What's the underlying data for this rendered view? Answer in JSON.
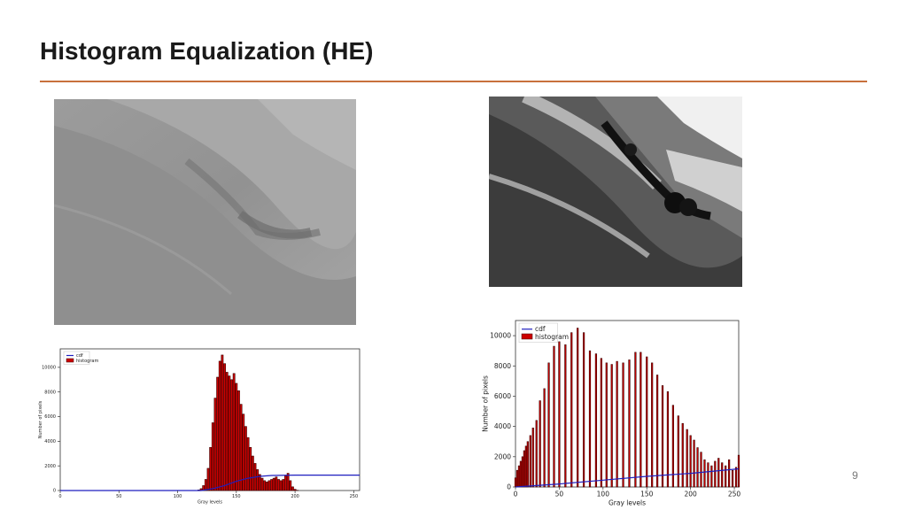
{
  "slide": {
    "title": "Histogram Equalization (HE)",
    "page_number": "9",
    "accent_color": "#c8703c"
  },
  "images": [
    {
      "name": "original-landscape-photo",
      "tone": "low-contrast grayscale"
    },
    {
      "name": "equalized-landscape-photo",
      "tone": "high-contrast grayscale"
    }
  ],
  "chart_data": [
    {
      "type": "bar",
      "xlabel": "Gray levels",
      "ylabel": "Number of pixels",
      "xlim": [
        0,
        255
      ],
      "ylim": [
        0,
        11500
      ],
      "xticks": [
        0,
        50,
        100,
        150,
        200,
        250
      ],
      "yticks": [
        0,
        2000,
        4000,
        6000,
        8000,
        10000
      ],
      "legend": [
        "cdf",
        "histogram"
      ],
      "legend_position": "top-left",
      "series_colors": {
        "cdf": "#1f1fbf",
        "histogram": "#cc0000"
      },
      "histogram": {
        "x": [
          118,
          120,
          122,
          124,
          126,
          128,
          130,
          132,
          134,
          136,
          138,
          140,
          142,
          144,
          146,
          148,
          150,
          152,
          154,
          156,
          158,
          160,
          162,
          164,
          166,
          168,
          170,
          172,
          174,
          176,
          178,
          180,
          182,
          184,
          186,
          188,
          190,
          192,
          194,
          196,
          198,
          200,
          202
        ],
        "y": [
          50,
          150,
          400,
          900,
          1800,
          3500,
          5500,
          7500,
          9200,
          10500,
          11000,
          10300,
          9600,
          9300,
          9000,
          9500,
          8700,
          8100,
          7000,
          6200,
          5200,
          4300,
          3500,
          2800,
          2200,
          1700,
          1300,
          1000,
          800,
          700,
          800,
          900,
          1000,
          1100,
          900,
          800,
          900,
          1200,
          1400,
          800,
          300,
          100,
          20
        ]
      },
      "cdf": {
        "x": [
          0,
          120,
          130,
          140,
          150,
          160,
          170,
          180,
          200,
          255
        ],
        "y": [
          0,
          0,
          150,
          400,
          750,
          1000,
          1150,
          1220,
          1250,
          1250
        ]
      }
    },
    {
      "type": "bar",
      "xlabel": "Gray levels",
      "ylabel": "Number of pixels",
      "xlim": [
        0,
        255
      ],
      "ylim": [
        0,
        11000
      ],
      "xticks": [
        0,
        50,
        100,
        150,
        200,
        250
      ],
      "yticks": [
        0,
        2000,
        4000,
        6000,
        8000,
        10000
      ],
      "legend": [
        "cdf",
        "histogram"
      ],
      "legend_position": "top-left",
      "series_colors": {
        "cdf": "#1f1fbf",
        "histogram": "#cc0000"
      },
      "histogram": {
        "x": [
          0,
          2,
          4,
          6,
          8,
          10,
          12,
          14,
          17,
          20,
          24,
          28,
          33,
          38,
          44,
          50,
          57,
          64,
          71,
          78,
          85,
          92,
          98,
          104,
          110,
          116,
          123,
          130,
          137,
          143,
          150,
          156,
          162,
          168,
          174,
          180,
          186,
          191,
          196,
          200,
          204,
          208,
          212,
          216,
          220,
          224,
          228,
          232,
          236,
          240,
          244,
          248,
          252,
          255
        ],
        "y": [
          600,
          1100,
          1400,
          1700,
          2000,
          2400,
          2700,
          3000,
          3400,
          3900,
          4400,
          5700,
          6500,
          8200,
          9300,
          9600,
          9400,
          10200,
          10500,
          10200,
          9000,
          8800,
          8500,
          8200,
          8100,
          8300,
          8200,
          8400,
          8900,
          8900,
          8600,
          8200,
          7400,
          6700,
          6300,
          5400,
          4700,
          4200,
          3800,
          3400,
          3100,
          2600,
          2300,
          1800,
          1600,
          1400,
          1700,
          1900,
          1600,
          1400,
          1800,
          1100,
          1300,
          2100
        ]
      },
      "cdf": {
        "x": [
          0,
          50,
          100,
          150,
          200,
          255
        ],
        "y": [
          0,
          200,
          450,
          700,
          900,
          1200
        ]
      }
    }
  ]
}
